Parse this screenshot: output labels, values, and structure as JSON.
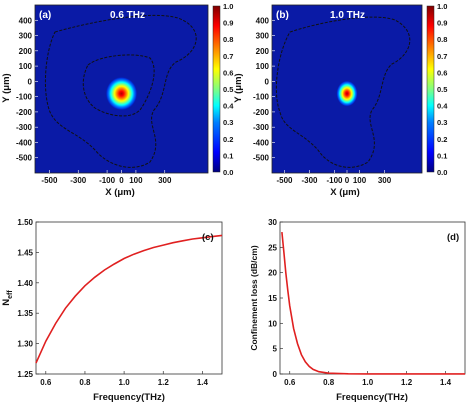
{
  "colors": {
    "curve": "#e02020",
    "field_bg": "#0a1aa6",
    "contour": "#111111",
    "colormap": [
      "#00007f",
      "#0000ff",
      "#0080ff",
      "#00ffff",
      "#80ff80",
      "#ffff00",
      "#ff8000",
      "#ff0000",
      "#7f0000"
    ]
  },
  "chart_data": [
    {
      "panel": "(a)",
      "type": "heatmap",
      "title": "0.6 THz",
      "xlabel": "X (μm)",
      "ylabel": "Y (μm)",
      "xticks": [
        "-500",
        "-300",
        "-100",
        "0",
        "100",
        "300"
      ],
      "yticks": [
        "400",
        "300",
        "200",
        "100",
        "0",
        "-100",
        "-200",
        "-300",
        "-400",
        "-500"
      ],
      "xlim": [
        -600,
        600
      ],
      "ylim": [
        -600,
        500
      ],
      "field_peak_center": [
        0,
        -80
      ],
      "field_spot_radius": 110,
      "colorbar_ticks": [
        "1.0",
        "0.9",
        "0.8",
        "0.7",
        "0.6",
        "0.5",
        "0.4",
        "0.3",
        "0.2",
        "0.1",
        "0.0"
      ]
    },
    {
      "panel": "(b)",
      "type": "heatmap",
      "title": "1.0 THz",
      "xlabel": "X (μm)",
      "ylabel": "Y (μm)",
      "xticks": [
        "-500",
        "-300",
        "-100",
        "0",
        "100",
        "300"
      ],
      "yticks": [
        "400",
        "300",
        "200",
        "100",
        "0",
        "-100",
        "-200",
        "-300",
        "-400",
        "-500"
      ],
      "xlim": [
        -600,
        600
      ],
      "ylim": [
        -600,
        500
      ],
      "field_peak_center": [
        0,
        -80
      ],
      "field_spot_radius": 85,
      "colorbar_ticks": [
        "1.0",
        "0.9",
        "0.8",
        "0.7",
        "0.6",
        "0.5",
        "0.4",
        "0.3",
        "0.2",
        "0.1",
        "0.0"
      ]
    },
    {
      "panel": "(c)",
      "type": "line",
      "xlabel": "Frequency(THz)",
      "ylabel_main": "N",
      "ylabel_sub": "eff",
      "xlim": [
        0.55,
        1.5
      ],
      "ylim": [
        1.25,
        1.5
      ],
      "xticks": [
        0.6,
        0.8,
        1.0,
        1.2,
        1.4
      ],
      "yticks": [
        1.25,
        1.3,
        1.35,
        1.4,
        1.45,
        1.5
      ],
      "xtick_labels": [
        "0.6",
        "0.8",
        "1.0",
        "1.2",
        "1.4"
      ],
      "ytick_labels": [
        "1.25",
        "1.30",
        "1.35",
        "1.40",
        "1.45",
        "1.50"
      ],
      "series": [
        {
          "x": [
            0.55,
            0.6,
            0.65,
            0.7,
            0.75,
            0.8,
            0.85,
            0.9,
            0.95,
            1.0,
            1.05,
            1.1,
            1.15,
            1.2,
            1.25,
            1.3,
            1.35,
            1.4,
            1.45,
            1.5
          ],
          "y": [
            1.268,
            1.304,
            1.333,
            1.358,
            1.378,
            1.395,
            1.409,
            1.421,
            1.431,
            1.44,
            1.447,
            1.453,
            1.458,
            1.462,
            1.466,
            1.469,
            1.472,
            1.474,
            1.476,
            1.478
          ]
        }
      ]
    },
    {
      "panel": "(d)",
      "type": "line",
      "xlabel": "Frequency(THz)",
      "ylabel": "Confinement loss (dB/cm)",
      "xlim": [
        0.55,
        1.5
      ],
      "ylim": [
        0,
        30
      ],
      "xticks": [
        0.6,
        0.8,
        1.0,
        1.2,
        1.4
      ],
      "yticks": [
        0,
        5,
        10,
        15,
        20,
        25,
        30
      ],
      "xtick_labels": [
        "0.6",
        "0.8",
        "1.0",
        "1.2",
        "1.4"
      ],
      "ytick_labels": [
        "0",
        "5",
        "10",
        "15",
        "20",
        "25",
        "30"
      ],
      "series": [
        {
          "x": [
            0.56,
            0.57,
            0.58,
            0.59,
            0.6,
            0.62,
            0.64,
            0.66,
            0.68,
            0.7,
            0.72,
            0.75,
            0.8,
            0.9,
            1.0,
            1.2,
            1.4,
            1.5
          ],
          "y": [
            28.0,
            24.0,
            20.0,
            16.5,
            13.5,
            9.0,
            6.0,
            3.8,
            2.4,
            1.5,
            0.9,
            0.45,
            0.15,
            0.04,
            0.02,
            0.01,
            0.01,
            0.01
          ]
        }
      ]
    }
  ]
}
